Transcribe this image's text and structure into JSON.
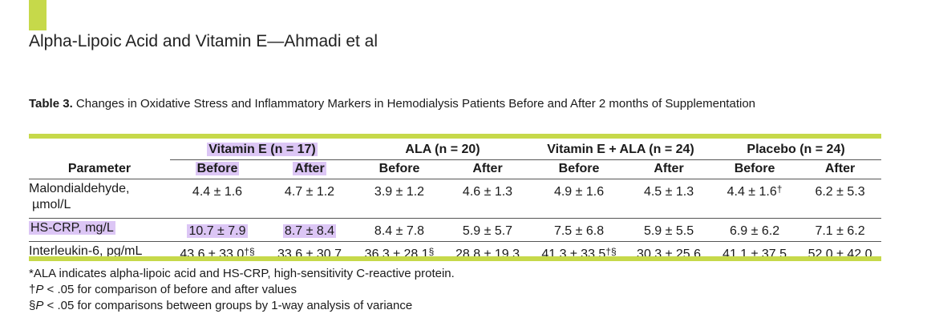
{
  "header": {
    "running_head": "Alpha-Lipoic Acid and Vitamin E—Ahmadi et al",
    "accent_color": "#c6d94a"
  },
  "caption": {
    "label": "Table 3.",
    "text": "Changes in Oxidative Stress and Inflammatory Markers in Hemodialysis Patients Before and After 2 months of Supplementation"
  },
  "table": {
    "param_header": "Parameter",
    "groups": [
      "Vitamin E (n = 17)",
      "ALA (n = 20)",
      "Vitamin E + ALA (n = 24)",
      "Placebo (n = 24)"
    ],
    "before": "Before",
    "after": "After",
    "highlight_color": "#dcc6f5",
    "rows": [
      {
        "param_line1": "Malondialdehyde,",
        "param_line2": "µmol/L",
        "values": [
          "4.4 ± 1.6",
          "4.7 ± 1.2",
          "3.9 ± 1.2",
          "4.6 ± 1.3",
          "4.9 ± 1.6",
          "4.5 ± 1.3",
          "4.4 ± 1.6",
          "6.2 ± 5.3"
        ],
        "marks": [
          "",
          "",
          "",
          "",
          "",
          "",
          "†",
          ""
        ]
      },
      {
        "param_line1": "HS-CRP, mg/L",
        "values": [
          "10.7 ± 7.9",
          "8.7 ± 8.4",
          "8.4 ± 7.8",
          "5.9 ± 5.7",
          "7.5 ± 6.8",
          "5.9 ± 5.5",
          "6.9 ± 6.2",
          "7.1 ± 6.2"
        ],
        "marks": [
          "",
          "",
          "",
          "",
          "",
          "",
          "",
          ""
        ]
      },
      {
        "param_line1": "Interleukin-6, pg/mL",
        "values": [
          "43.6 ± 33.0",
          "33.6 ± 30.7",
          "36.3 ± 28.1",
          "28.8 ± 19.3",
          "41.3 ± 33.5",
          "30.3 ± 25.6",
          "41.1 ± 37.5",
          "52.0 ± 42.0"
        ],
        "marks": [
          "†§",
          "",
          "§",
          "",
          "†§",
          "",
          "",
          ""
        ]
      }
    ]
  },
  "footnotes": {
    "line1": "*ALA indicates alpha-lipoic acid and HS-CRP, high-sensitivity C-reactive protein.",
    "line2_mark": "†",
    "line2_p": "P",
    "line2_rest": " < .05 for comparison of before and after values",
    "line3_mark": "§",
    "line3_p": "P",
    "line3_rest": " < .05 for comparisons between groups by 1-way analysis of variance"
  }
}
